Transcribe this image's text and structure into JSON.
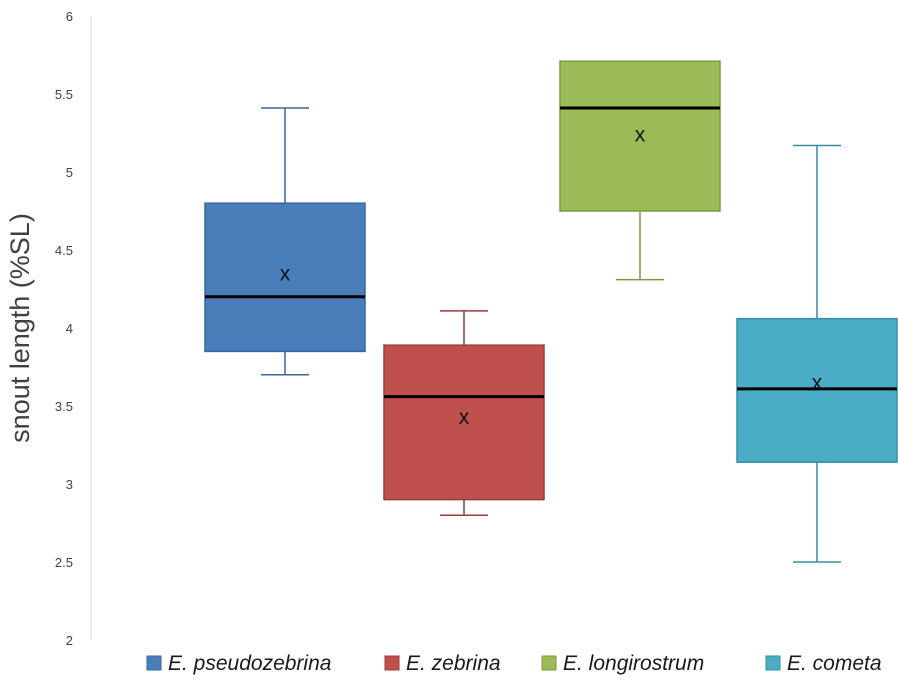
{
  "chart_data": {
    "type": "box",
    "title": "",
    "xlabel": "",
    "ylabel": "snout length (%SL)",
    "ylim": [
      2,
      6
    ],
    "yticks": [
      2,
      2.5,
      3,
      3.5,
      4,
      4.5,
      5,
      5.5,
      6
    ],
    "ytick_labels": [
      "2",
      "2.5",
      "3",
      "3.5",
      "4",
      "4.5",
      "5",
      "5.5",
      "6"
    ],
    "grid": false,
    "legend_position": "bottom",
    "mean_marker": "x",
    "series": [
      {
        "name": "E. pseudozebrina",
        "color": "#4a7ebb",
        "stroke": "#3a66a0",
        "min": 3.7,
        "q1": 3.85,
        "median": 4.2,
        "q3": 4.8,
        "max": 5.41,
        "mean": 4.35
      },
      {
        "name": "E. zebrina",
        "color": "#c0504d",
        "stroke": "#9c3b38",
        "min": 2.8,
        "q1": 2.9,
        "median": 3.56,
        "q3": 3.89,
        "max": 4.11,
        "mean": 3.43
      },
      {
        "name": "E. longirostrum",
        "color": "#9bbb59",
        "stroke": "#7a9a3e",
        "min": 4.31,
        "q1": 4.75,
        "median": 5.41,
        "q3": 5.71,
        "max": 5.71,
        "mean": 5.24
      },
      {
        "name": "E. cometa",
        "color": "#4bacc6",
        "stroke": "#358ea6",
        "min": 2.5,
        "q1": 3.14,
        "median": 3.61,
        "q3": 4.06,
        "max": 5.17,
        "mean": 3.65
      }
    ]
  }
}
